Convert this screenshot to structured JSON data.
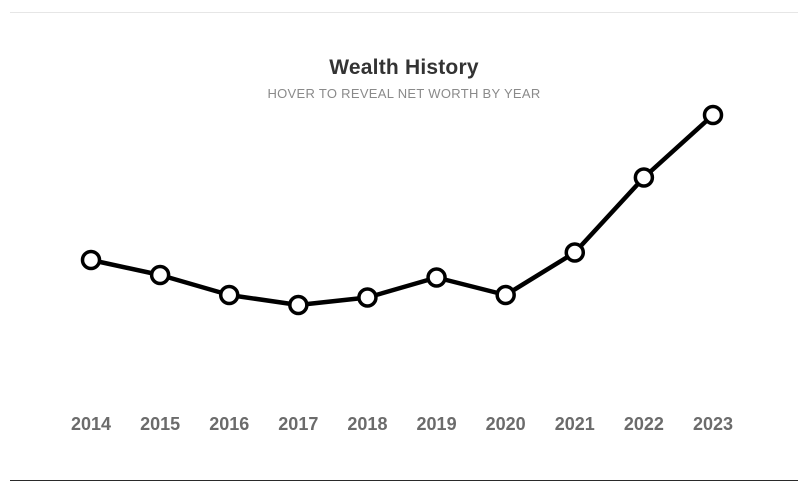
{
  "chart_data": {
    "type": "line",
    "title": "Wealth History",
    "subtitle": "HOVER TO REVEAL NET WORTH BY YEAR",
    "categories": [
      "2014",
      "2015",
      "2016",
      "2017",
      "2018",
      "2019",
      "2020",
      "2021",
      "2022",
      "2023"
    ],
    "series": [
      {
        "values": [
          0.42,
          0.36,
          0.28,
          0.24,
          0.27,
          0.35,
          0.28,
          0.45,
          0.75,
          1.0
        ]
      }
    ],
    "ylim": [
      -0.5,
      1.0
    ],
    "grid": false,
    "line_color": "#000000",
    "marker_fill": "#ffffff"
  }
}
